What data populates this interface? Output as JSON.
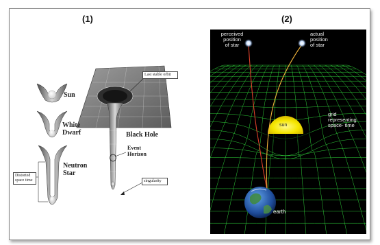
{
  "panel1": {
    "label": "(1)",
    "sun": "Sun",
    "white_dwarf_line1": "White",
    "white_dwarf_line2": "Dwarf",
    "neutron_line1": "Neutron",
    "neutron_line2": "Star",
    "distorted_line1": "Distorted",
    "distorted_line2": "space time",
    "black_hole": "Black Hole",
    "event_line1": "Event",
    "event_line2": "Horizon",
    "singularity": "singularity",
    "last_stable_orbit": "Last stable orbit"
  },
  "panel2": {
    "label": "(2)",
    "perceived_line1": "perceived",
    "perceived_line2": "position",
    "perceived_line3": "of star",
    "actual_line1": "actual",
    "actual_line2": "position",
    "actual_line3": "of star",
    "grid_line1": "grid representing",
    "grid_line2": "space- time",
    "sun": "sun",
    "earth": "earth"
  },
  "colors": {
    "grid": "#2fd13a",
    "sun": "#f5e600",
    "light_path_perceived": "#e0402a",
    "light_path_actual": "#f0b23a"
  }
}
